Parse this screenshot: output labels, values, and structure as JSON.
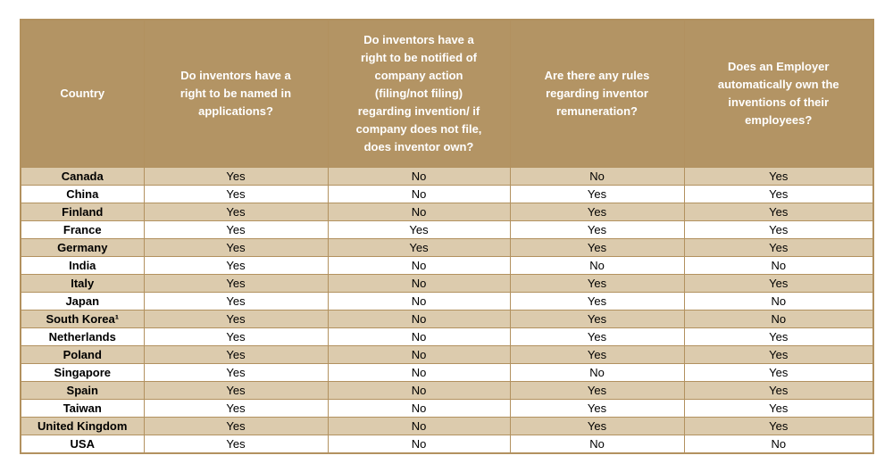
{
  "colors": {
    "header_bg": "#b39464",
    "row_alt_bg": "#dccbad",
    "row_bg": "#ffffff",
    "border": "#b2915f",
    "header_text": "#ffffff",
    "body_text": "#000000",
    "page_bg": "#ffffff"
  },
  "table": {
    "headers": [
      "Country",
      "Do inventors have a right to be named in applications?",
      "Do inventors have a right to be notified of company action (filing/not filing) regarding invention/ if company does not file, does inventor own?",
      "Are there any rules regarding inventor remuneration?",
      "Does an Employer automatically own the inventions of their employees?"
    ],
    "rows": [
      {
        "country": "Canada",
        "values": [
          "Yes",
          "No",
          "No",
          "Yes"
        ]
      },
      {
        "country": "China",
        "values": [
          "Yes",
          "No",
          "Yes",
          "Yes"
        ]
      },
      {
        "country": "Finland",
        "values": [
          "Yes",
          "No",
          "Yes",
          "Yes"
        ]
      },
      {
        "country": "France",
        "values": [
          "Yes",
          "Yes",
          "Yes",
          "Yes"
        ]
      },
      {
        "country": "Germany",
        "values": [
          "Yes",
          "Yes",
          "Yes",
          "Yes"
        ]
      },
      {
        "country": "India",
        "values": [
          "Yes",
          "No",
          "No",
          "No"
        ]
      },
      {
        "country": "Italy",
        "values": [
          "Yes",
          "No",
          "Yes",
          "Yes"
        ]
      },
      {
        "country": "Japan",
        "values": [
          "Yes",
          "No",
          "Yes",
          "No"
        ]
      },
      {
        "country": "South Korea¹",
        "values": [
          "Yes",
          "No",
          "Yes",
          "No"
        ]
      },
      {
        "country": "Netherlands",
        "values": [
          "Yes",
          "No",
          "Yes",
          "Yes"
        ]
      },
      {
        "country": "Poland",
        "values": [
          "Yes",
          "No",
          "Yes",
          "Yes"
        ]
      },
      {
        "country": "Singapore",
        "values": [
          "Yes",
          "No",
          "No",
          "Yes"
        ]
      },
      {
        "country": "Spain",
        "values": [
          "Yes",
          "No",
          "Yes",
          "Yes"
        ]
      },
      {
        "country": "Taiwan",
        "values": [
          "Yes",
          "No",
          "Yes",
          "Yes"
        ]
      },
      {
        "country": "United Kingdom",
        "values": [
          "Yes",
          "No",
          "Yes",
          "Yes"
        ]
      },
      {
        "country": "USA",
        "values": [
          "Yes",
          "No",
          "No",
          "No"
        ]
      }
    ]
  }
}
